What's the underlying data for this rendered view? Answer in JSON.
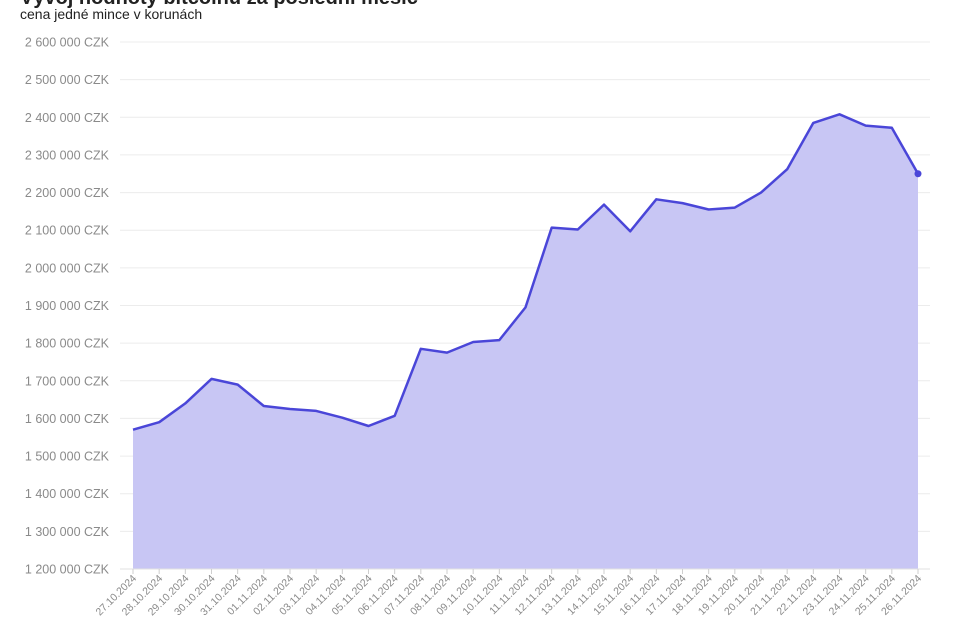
{
  "chart_data": {
    "type": "area",
    "title": "Vývoj hodnoty bitcoinu za poslední měsíc",
    "subtitle": "cena jedné mince v korunách",
    "y_unit": "CZK",
    "ylim": [
      1200000,
      2600000
    ],
    "y_ticks": [
      "1 200 000 CZK",
      "1 300 000 CZK",
      "1 400 000 CZK",
      "1 500 000 CZK",
      "1 600 000 CZK",
      "1 700 000 CZK",
      "1 800 000 CZK",
      "1 900 000 CZK",
      "2 000 000 CZK",
      "2 100 000 CZK",
      "2 200 000 CZK",
      "2 300 000 CZK",
      "2 400 000 CZK",
      "2 500 000 CZK",
      "2 600 000 CZK"
    ],
    "grid": true,
    "colors": {
      "line": "#4a46d8",
      "fill": "#c8c6f4",
      "grid": "#ececec",
      "tick": "#8a8a8a"
    },
    "x": [
      "27.10.2024",
      "28.10.2024",
      "29.10.2024",
      "30.10.2024",
      "31.10.2024",
      "01.11.2024",
      "02.11.2024",
      "03.11.2024",
      "04.11.2024",
      "05.11.2024",
      "06.11.2024",
      "07.11.2024",
      "08.11.2024",
      "09.11.2024",
      "10.11.2024",
      "11.11.2024",
      "12.11.2024",
      "13.11.2024",
      "14.11.2024",
      "15.11.2024",
      "16.11.2024",
      "17.11.2024",
      "18.11.2024",
      "19.11.2024",
      "20.11.2024",
      "21.11.2024",
      "22.11.2024",
      "23.11.2024",
      "24.11.2024",
      "25.11.2024",
      "26.11.2024"
    ],
    "values": [
      1570000,
      1590000,
      1640000,
      1705000,
      1690000,
      1633000,
      1625000,
      1620000,
      1602000,
      1580000,
      1607000,
      1785000,
      1775000,
      1803000,
      1808000,
      1895000,
      2107000,
      2102000,
      2168000,
      2097000,
      2182000,
      2172000,
      2155000,
      2160000,
      2200000,
      2262000,
      2385000,
      2408000,
      2378000,
      2372000,
      2250000
    ]
  }
}
